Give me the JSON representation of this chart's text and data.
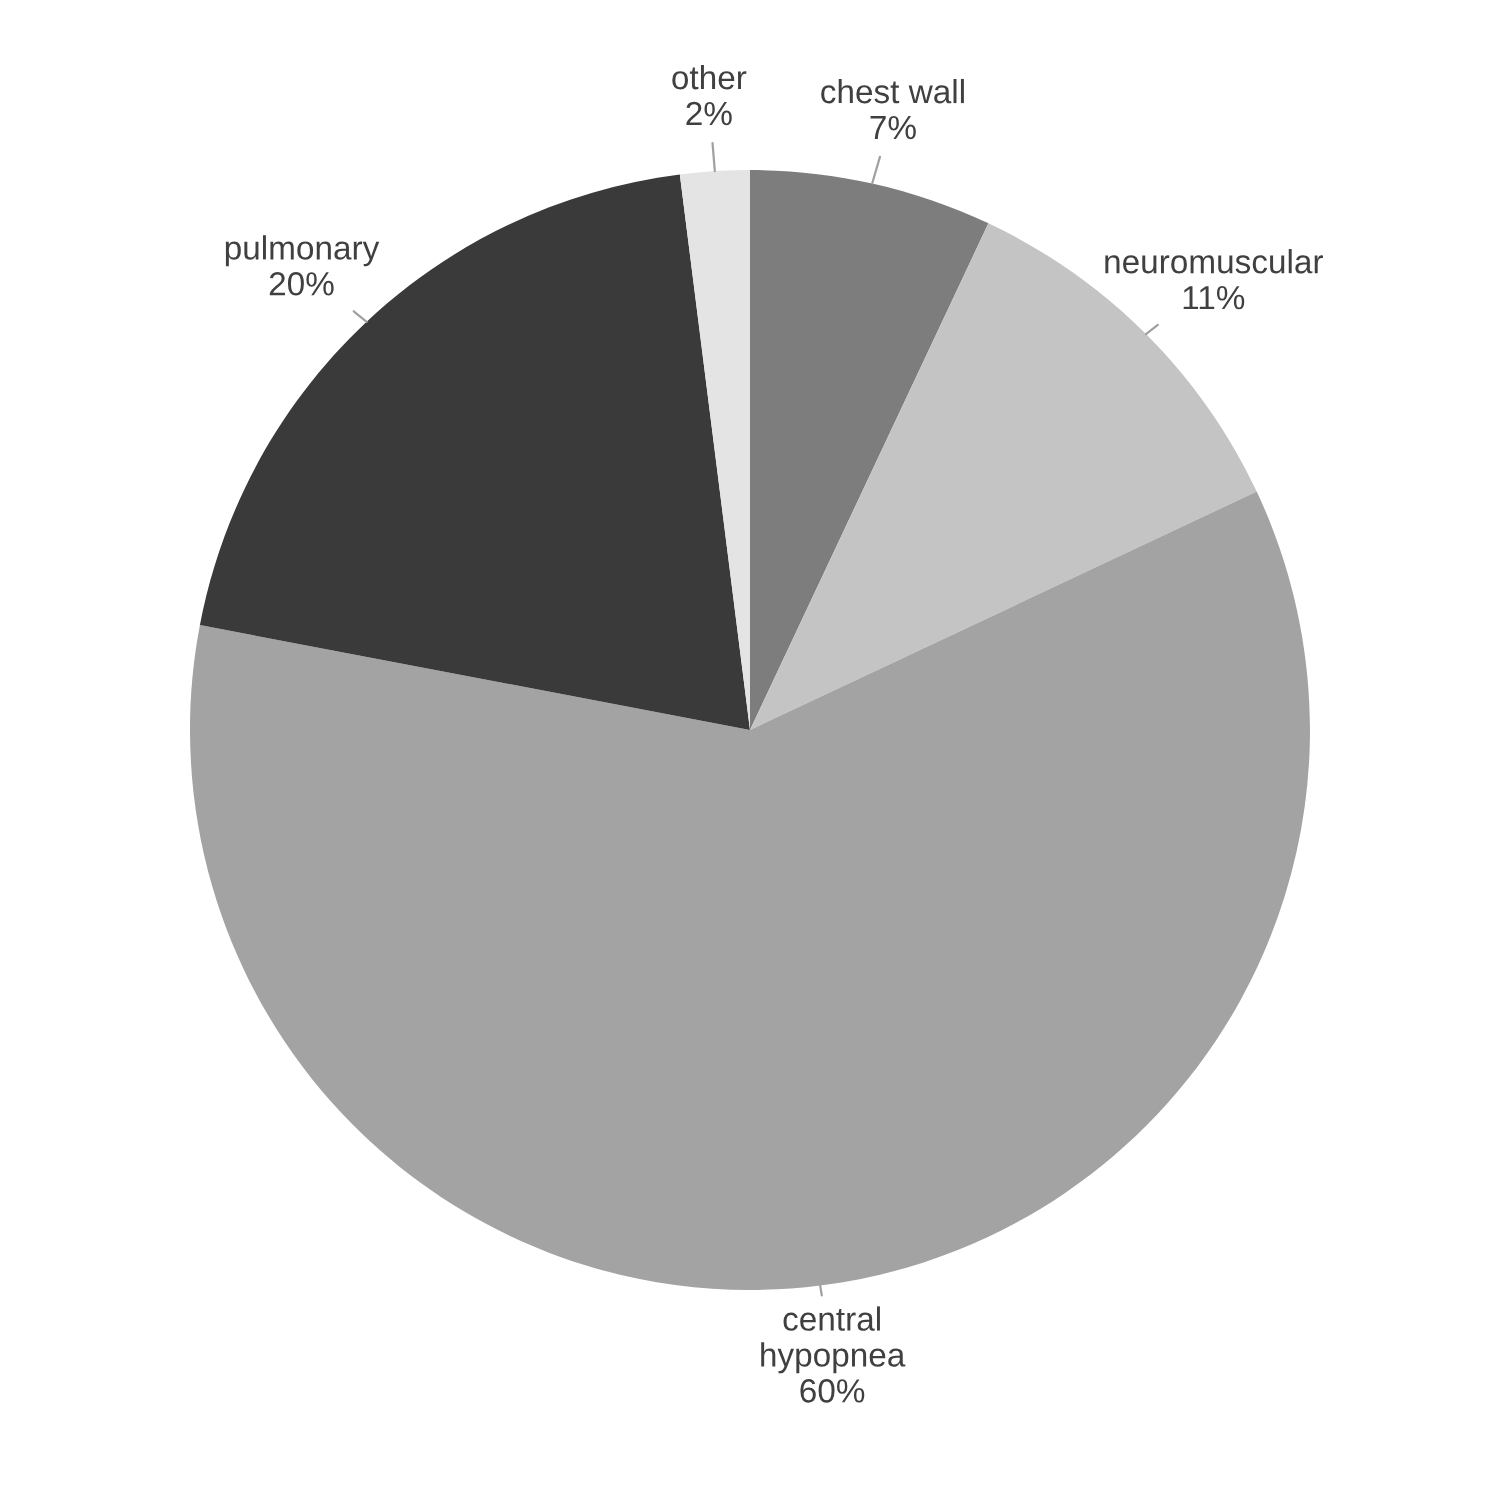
{
  "chart_data": {
    "type": "pie",
    "categories": [
      "chest wall",
      "neuromuscular",
      "central\nhypopnea",
      "pulmonary",
      "other"
    ],
    "values": [
      7,
      11,
      60,
      20,
      2
    ],
    "value_labels": [
      "7%",
      "11%",
      "60%",
      "20%",
      "2%"
    ],
    "colors": [
      "#7d7d7d",
      "#c4c4c4",
      "#a3a3a3",
      "#3a3a3a",
      "#e4e4e4"
    ]
  }
}
